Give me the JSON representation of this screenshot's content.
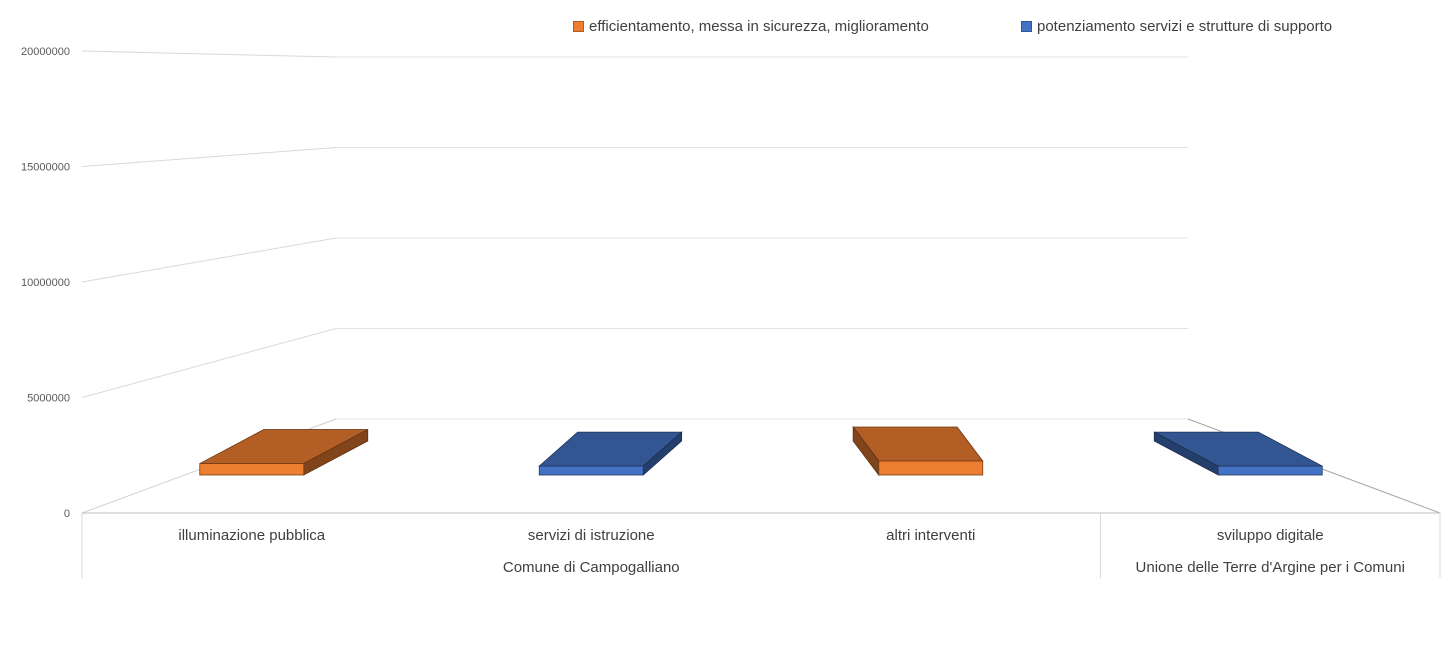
{
  "chart_data": {
    "type": "bar",
    "title": "",
    "xlabel": "",
    "ylabel": "",
    "ylim": [
      0,
      20000000
    ],
    "yticks": [
      "0",
      "5000000",
      "10000000",
      "15000000",
      "20000000"
    ],
    "categories": [
      "illuminazione pubblica",
      "servizi di istruzione",
      "altri interventi",
      "sviluppo digitale"
    ],
    "groups": [
      {
        "label": "Comune di Campogalliano",
        "categories": [
          "illuminazione pubblica",
          "servizi di istruzione",
          "altri interventi"
        ]
      },
      {
        "label": "Unione delle Terre d'Argine per i Comuni",
        "categories": [
          "sviluppo digitale"
        ]
      }
    ],
    "series": [
      {
        "name": "efficientamento, messa in sicurezza, miglioramento",
        "color": "#ed7d31",
        "values": [
          450000,
          null,
          550000,
          null
        ]
      },
      {
        "name": "potenziamento servizi e strutture di supporto",
        "color": "#4472c4",
        "values": [
          null,
          350000,
          null,
          350000
        ]
      }
    ],
    "grid": true,
    "legend_position": "top-right",
    "three_d": true
  }
}
